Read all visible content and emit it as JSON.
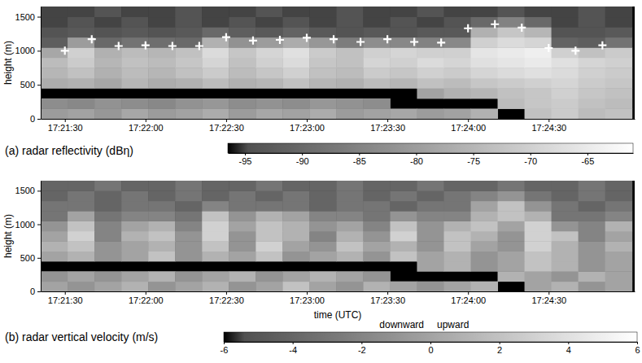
{
  "chart_data": [
    {
      "type": "heatmap",
      "title": "(a) radar reflectivity (dBη)",
      "ylabel": "height (m)",
      "xlim": [
        62481,
        62702
      ],
      "ylim": [
        0,
        1650
      ],
      "xticks": [
        {
          "value": 62490,
          "label": "17:21:30"
        },
        {
          "value": 62520,
          "label": "17:22:00"
        },
        {
          "value": 62550,
          "label": "17:22:30"
        },
        {
          "value": 62580,
          "label": "17:23:00"
        },
        {
          "value": 62610,
          "label": "17:23:30"
        },
        {
          "value": 62640,
          "label": "17:24:00"
        },
        {
          "value": 62670,
          "label": "17:24:30"
        }
      ],
      "yticks": [
        0,
        500,
        1000,
        1500
      ],
      "x": [
        62486,
        62496,
        62506,
        62516,
        62526,
        62536,
        62546,
        62556,
        62566,
        62576,
        62586,
        62596,
        62606,
        62616,
        62626,
        62636,
        62646,
        62656,
        62666,
        62676,
        62686,
        62696
      ],
      "y": [
        75,
        225,
        375,
        525,
        675,
        825,
        975,
        1125,
        1275,
        1425,
        1575
      ],
      "values": [
        [
          -80,
          -79,
          -81,
          -78,
          -80,
          -79,
          -77,
          -80,
          -78,
          -79,
          -77,
          -80,
          -79,
          -78,
          -80,
          -79,
          -76,
          null,
          -73,
          -71,
          -74,
          -73
        ],
        [
          -83,
          -84,
          -82,
          -83,
          -84,
          -82,
          -81,
          -83,
          -82,
          -83,
          -81,
          -82,
          -83,
          null,
          null,
          null,
          null,
          -74,
          -72,
          -71,
          -73,
          -74
        ],
        [
          null,
          null,
          null,
          null,
          null,
          null,
          null,
          null,
          null,
          null,
          null,
          null,
          null,
          null,
          -79,
          -76,
          -75,
          -73,
          -72,
          -70,
          -72,
          -73
        ],
        [
          -77,
          -76,
          -78,
          -75,
          -77,
          -76,
          -74,
          -76,
          -75,
          -73,
          -75,
          -76,
          -74,
          -75,
          -73,
          -74,
          -72,
          -71,
          -70,
          -69,
          -71,
          -72
        ],
        [
          -75,
          -73,
          -76,
          -74,
          -75,
          -73,
          -71,
          -74,
          -72,
          -70,
          -73,
          -74,
          -71,
          -72,
          -70,
          -71,
          -69,
          -68,
          -67,
          -68,
          -70,
          -71
        ],
        [
          -74,
          -71,
          -75,
          -73,
          -74,
          -72,
          -69,
          -73,
          -70,
          -68,
          -72,
          -73,
          -69,
          -70,
          -68,
          -69,
          -67,
          -66,
          -65,
          -67,
          -69,
          -70
        ],
        [
          -78,
          -70,
          -76,
          -74,
          -75,
          -73,
          -68,
          -72,
          -69,
          -67,
          -71,
          -73,
          -70,
          -69,
          -70,
          -70,
          -66,
          -65,
          -64,
          -70,
          -73,
          -71
        ],
        [
          -92,
          -80,
          -90,
          -88,
          -89,
          -90,
          -76,
          -82,
          -80,
          -77,
          -81,
          -86,
          -83,
          -84,
          -85,
          -84,
          -70,
          -68,
          -69,
          -91,
          -92,
          -88
        ],
        [
          -94,
          -93,
          -94,
          -93,
          -94,
          -93,
          -90,
          -92,
          -93,
          -91,
          -93,
          -94,
          -93,
          -94,
          -93,
          -93,
          -76,
          -72,
          -75,
          -94,
          -94,
          -93
        ],
        [
          -95,
          -94,
          -95,
          -94,
          -95,
          -94,
          -95,
          -94,
          -95,
          -94,
          -95,
          -94,
          -95,
          -94,
          -95,
          -94,
          -90,
          -85,
          -90,
          -95,
          -94,
          -95
        ],
        [
          -95,
          -95,
          -94,
          -95,
          -95,
          -94,
          -95,
          -95,
          -94,
          -95,
          -95,
          -94,
          -95,
          -95,
          -94,
          -95,
          -95,
          -94,
          -95,
          -95,
          -94,
          -95
        ]
      ],
      "color_range": [
        -96.5,
        -61
      ],
      "color_ticks": [
        -95,
        -90,
        -85,
        -80,
        -75,
        -70,
        -65
      ],
      "markers": {
        "marker": "plus",
        "color": "#ffffff",
        "x": [
          62490,
          62500,
          62510,
          62520,
          62530,
          62540,
          62550,
          62560,
          62570,
          62580,
          62590,
          62600,
          62610,
          62620,
          62630,
          62640,
          62650,
          62660,
          62670,
          62680,
          62690
        ],
        "y": [
          1000,
          1170,
          1070,
          1080,
          1070,
          1070,
          1200,
          1150,
          1160,
          1190,
          1170,
          1130,
          1170,
          1130,
          1120,
          1330,
          1390,
          1340,
          1040,
          1000,
          1080
        ]
      }
    },
    {
      "type": "heatmap",
      "title": "(b) radar vertical velocity (m/s)",
      "ylabel": "height (m)",
      "xlabel": "time (UTC)",
      "xlim": [
        62481,
        62702
      ],
      "ylim": [
        0,
        1650
      ],
      "xticks": [
        {
          "value": 62490,
          "label": "17:21:30"
        },
        {
          "value": 62520,
          "label": "17:22:00"
        },
        {
          "value": 62550,
          "label": "17:22:30"
        },
        {
          "value": 62580,
          "label": "17:23:00"
        },
        {
          "value": 62610,
          "label": "17:23:30"
        },
        {
          "value": 62640,
          "label": "17:24:00"
        },
        {
          "value": 62670,
          "label": "17:24:30"
        }
      ],
      "yticks": [
        0,
        500,
        1000,
        1500
      ],
      "x": [
        62486,
        62496,
        62506,
        62516,
        62526,
        62536,
        62546,
        62556,
        62566,
        62576,
        62586,
        62596,
        62606,
        62616,
        62626,
        62636,
        62646,
        62656,
        62666,
        62676,
        62686,
        62696
      ],
      "y": [
        75,
        225,
        375,
        525,
        675,
        825,
        975,
        1125,
        1275,
        1425,
        1575
      ],
      "values": [
        [
          0,
          -1,
          0,
          1,
          -1,
          0,
          1,
          -1,
          0,
          2,
          0,
          -1,
          1,
          0,
          -1,
          0,
          1,
          null,
          0,
          1,
          -1,
          0
        ],
        [
          -1,
          0,
          -1,
          0,
          1,
          -1,
          0,
          1,
          -1,
          0,
          1,
          0,
          -1,
          null,
          null,
          null,
          null,
          1,
          0,
          -1,
          1,
          0
        ],
        [
          null,
          null,
          null,
          null,
          null,
          null,
          null,
          null,
          null,
          null,
          null,
          null,
          null,
          null,
          0,
          1,
          -1,
          0,
          2,
          1,
          -1,
          0
        ],
        [
          0,
          1,
          -1,
          0,
          2,
          -1,
          1,
          0,
          2,
          -1,
          0,
          1,
          -1,
          2,
          0,
          1,
          -1,
          0,
          2,
          1,
          -1,
          0
        ],
        [
          1,
          2,
          -1,
          0,
          1,
          -1,
          2,
          -1,
          3,
          0,
          -1,
          2,
          0,
          1,
          -1,
          2,
          0,
          -1,
          3,
          1,
          -1,
          1
        ],
        [
          0,
          3,
          -2,
          1,
          2,
          -1,
          3,
          -1,
          2,
          1,
          -2,
          1,
          -1,
          3,
          -1,
          2,
          1,
          -1,
          3,
          2,
          -2,
          0
        ],
        [
          -1,
          2,
          -2,
          0,
          1,
          -2,
          3,
          0,
          2,
          1,
          -1,
          0,
          -2,
          2,
          -1,
          1,
          2,
          0,
          3,
          -1,
          -2,
          1
        ],
        [
          -3,
          0,
          -3,
          -2,
          -2,
          -3,
          2,
          -1,
          1,
          0,
          -2,
          -2,
          -3,
          -1,
          -2,
          -2,
          1,
          2,
          1,
          -3,
          -3,
          -2
        ],
        [
          -3,
          -3,
          -4,
          -3,
          -3,
          -4,
          -2,
          -3,
          -3,
          -3,
          -4,
          -3,
          -3,
          -4,
          -3,
          -3,
          0,
          2,
          -1,
          -3,
          -4,
          -3
        ],
        [
          -4,
          -3,
          -4,
          -3,
          -4,
          -3,
          -4,
          -3,
          -4,
          -3,
          -4,
          -3,
          -4,
          -3,
          -4,
          -3,
          -2,
          -1,
          -3,
          -4,
          -3,
          -4
        ],
        [
          -4,
          -4,
          -3,
          -4,
          -4,
          -3,
          -4,
          -4,
          -3,
          -4,
          -4,
          -3,
          -4,
          -4,
          -3,
          -4,
          -4,
          -3,
          -4,
          -4,
          -3,
          -4
        ]
      ],
      "color_range": [
        -6,
        6
      ],
      "color_ticks": [
        -6,
        -4,
        -2,
        0,
        2,
        4,
        6
      ],
      "annotations": [
        "downward",
        "upward"
      ]
    }
  ]
}
